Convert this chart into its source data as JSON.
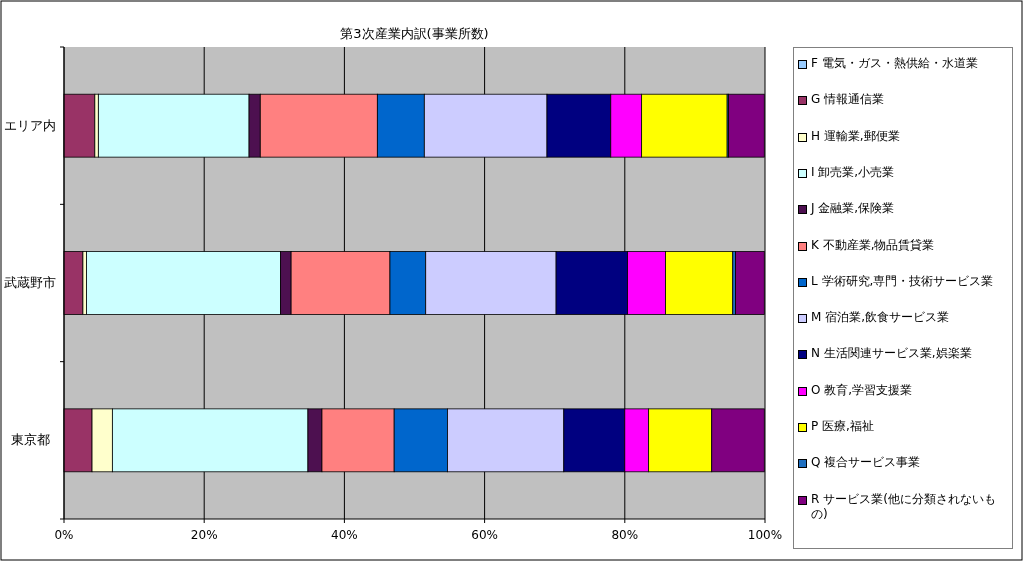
{
  "chart_data": {
    "type": "bar",
    "orientation": "horizontal",
    "stacked": true,
    "title": "第3次産業内訳(事業所数)",
    "categories": [
      "エリア内",
      "武蔵野市",
      "東京都"
    ],
    "xlim": [
      0,
      100
    ],
    "xticks": [
      {
        "value": 0,
        "label": "0%"
      },
      {
        "value": 20,
        "label": "20%"
      },
      {
        "value": 40,
        "label": "40%"
      },
      {
        "value": 60,
        "label": "60%"
      },
      {
        "value": 80,
        "label": "80%"
      },
      {
        "value": 100,
        "label": "100%"
      }
    ],
    "grid": "x",
    "legend": "right",
    "series": [
      {
        "name": "F 電気・ガス・熱供給・水道業",
        "color": "#99ccff",
        "values": [
          null,
          null,
          null
        ]
      },
      {
        "name": "G 情報通信業",
        "color": "#993366",
        "values": [
          4.4,
          2.7,
          4.0
        ]
      },
      {
        "name": "H 運輸業,郵便業",
        "color": "#ffffcc",
        "values": [
          0.5,
          0.5,
          2.9
        ]
      },
      {
        "name": "I 卸売業,小売業",
        "color": "#ccffff",
        "values": [
          21.5,
          27.7,
          27.9
        ]
      },
      {
        "name": "J 金融業,保険業",
        "color": "#4d1050",
        "values": [
          1.6,
          1.5,
          2.0
        ]
      },
      {
        "name": "K 不動産業,物品賃貸業",
        "color": "#ff8080",
        "values": [
          16.7,
          14.1,
          10.3
        ]
      },
      {
        "name": "L 学術研究,専門・技術サービス業",
        "color": "#0066cc",
        "values": [
          6.7,
          5.1,
          7.6
        ]
      },
      {
        "name": "M 宿泊業,飲食サービス業",
        "color": "#ccccff",
        "values": [
          17.5,
          18.6,
          16.6
        ]
      },
      {
        "name": "N 生活関連サービス業,娯楽業",
        "color": "#000080",
        "values": [
          9.1,
          10.2,
          8.7
        ]
      },
      {
        "name": "O 教育,学習支援業",
        "color": "#ff00ff",
        "values": [
          4.4,
          5.4,
          3.4
        ]
      },
      {
        "name": "P 医療,福祉",
        "color": "#ffff00",
        "values": [
          12.2,
          9.6,
          9.0
        ]
      },
      {
        "name": "Q 複合サービス事業",
        "color": "#1f6fc0",
        "values": [
          0.2,
          0.4,
          null
        ]
      },
      {
        "name": "R サービス業(他に分類されないもの)",
        "color": "#800080",
        "values": [
          5.1,
          4.1,
          7.5
        ]
      }
    ]
  }
}
